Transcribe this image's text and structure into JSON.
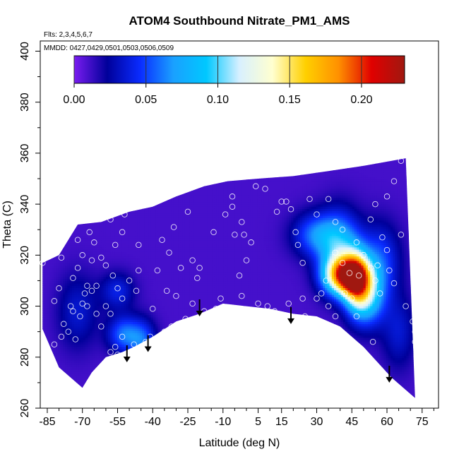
{
  "chart_data": {
    "type": "heatmap",
    "title": "ATOM4 Southbound Nitrate_PM1_AMS",
    "flights_note": "Flts: 2,3,4,5,6,7",
    "dates_note": "MMDD: 0427,0429,0501,0503,0506,0509",
    "xlabel": "Latitude (deg N)",
    "ylabel": "Theta (C)",
    "xlim": [
      -88,
      82
    ],
    "ylim": [
      260,
      404
    ],
    "xticks": [
      -85,
      -70,
      -55,
      -40,
      -25,
      -10,
      5,
      15,
      30,
      45,
      60,
      75
    ],
    "yticks": [
      260,
      280,
      300,
      320,
      340,
      360,
      380,
      400
    ],
    "colorbar": {
      "range": [
        0,
        0.23
      ],
      "ticks": [
        0.0,
        0.05,
        0.1,
        0.15,
        0.2
      ],
      "tick_labels": [
        "0.00",
        "0.05",
        "0.10",
        "0.15",
        "0.20"
      ],
      "colors": [
        "#7a1cf0",
        "#00009a",
        "#0a2cff",
        "#1aa0ff",
        "#00c8ff",
        "#d8f0ff",
        "#ffffd0",
        "#ffd000",
        "#ff9000",
        "#e00000",
        "#a01810"
      ]
    },
    "domain_top": [
      [
        -87,
        317
      ],
      [
        -80,
        320
      ],
      [
        -72,
        332
      ],
      [
        -62,
        333
      ],
      [
        -50,
        337
      ],
      [
        -40,
        339
      ],
      [
        -30,
        343
      ],
      [
        -18,
        347
      ],
      [
        -8,
        349
      ],
      [
        5,
        350
      ],
      [
        20,
        351
      ],
      [
        35,
        353
      ],
      [
        50,
        355
      ],
      [
        62,
        357
      ],
      [
        68,
        358
      ]
    ],
    "domain_bottom": [
      [
        72,
        264
      ],
      [
        62,
        272
      ],
      [
        50,
        284
      ],
      [
        40,
        292
      ],
      [
        30,
        296
      ],
      [
        20,
        297
      ],
      [
        10,
        299
      ],
      [
        0,
        300
      ],
      [
        -10,
        301
      ],
      [
        -20,
        297
      ],
      [
        -30,
        294
      ],
      [
        -40,
        288
      ],
      [
        -48,
        284
      ],
      [
        -53,
        282
      ],
      [
        -60,
        280
      ],
      [
        -66,
        274
      ],
      [
        -70,
        268
      ],
      [
        -80,
        276
      ],
      [
        -87,
        291
      ]
    ],
    "background_value": 0.01,
    "features": [
      {
        "lat": 42,
        "theta": 312,
        "value": 0.16,
        "sx": 6,
        "sy": 5
      },
      {
        "lat": 47,
        "theta": 310,
        "value": 0.12,
        "sx": 4,
        "sy": 8
      },
      {
        "lat": 40,
        "theta": 322,
        "value": 0.07,
        "sx": 6,
        "sy": 10
      },
      {
        "lat": 52,
        "theta": 304,
        "value": 0.07,
        "sx": 5,
        "sy": 8
      },
      {
        "lat": 30,
        "theta": 328,
        "value": 0.05,
        "sx": 7,
        "sy": 6
      },
      {
        "lat": 57,
        "theta": 318,
        "value": 0.04,
        "sx": 6,
        "sy": 10
      },
      {
        "lat": -52,
        "theta": 289,
        "value": 0.05,
        "sx": 5,
        "sy": 5
      },
      {
        "lat": -44,
        "theta": 286,
        "value": 0.04,
        "sx": 4,
        "sy": 6
      },
      {
        "lat": -55,
        "theta": 306,
        "value": 0.03,
        "sx": 5,
        "sy": 5
      },
      {
        "lat": -72,
        "theta": 298,
        "value": 0.025,
        "sx": 6,
        "sy": 10
      },
      {
        "lat": 65,
        "theta": 290,
        "value": 0.025,
        "sx": 5,
        "sy": 10
      }
    ],
    "sample_points": [
      [
        -87,
        317
      ],
      [
        -79,
        319
      ],
      [
        -72,
        326
      ],
      [
        -70,
        320
      ],
      [
        -72,
        315
      ],
      [
        -74,
        311
      ],
      [
        -75,
        300
      ],
      [
        -74,
        298
      ],
      [
        -76,
        290
      ],
      [
        -79,
        288
      ],
      [
        -82,
        285
      ],
      [
        -73,
        287
      ],
      [
        -71,
        296
      ],
      [
        -69,
        305
      ],
      [
        -68,
        308
      ],
      [
        -68,
        300
      ],
      [
        -70,
        301
      ],
      [
        -66,
        306
      ],
      [
        -64,
        297
      ],
      [
        -66,
        318
      ],
      [
        -67,
        329
      ],
      [
        -65,
        325
      ],
      [
        -62,
        319
      ],
      [
        -60,
        316
      ],
      [
        -57,
        312
      ],
      [
        -55,
        307
      ],
      [
        -53,
        303
      ],
      [
        -50,
        310
      ],
      [
        -47,
        306
      ],
      [
        -46,
        314
      ],
      [
        -46,
        324
      ],
      [
        -53,
        329
      ],
      [
        -56,
        324
      ],
      [
        -58,
        334
      ],
      [
        -52,
        336
      ],
      [
        -64,
        308
      ],
      [
        -60,
        300
      ],
      [
        -58,
        297
      ],
      [
        -62,
        292
      ],
      [
        -58,
        282
      ],
      [
        -56,
        284
      ],
      [
        -55,
        281
      ],
      [
        -53,
        288
      ],
      [
        -50,
        281
      ],
      [
        -48,
        285
      ],
      [
        -46,
        283
      ],
      [
        -43,
        286
      ],
      [
        -41,
        288
      ],
      [
        -38,
        314
      ],
      [
        -36,
        326
      ],
      [
        -33,
        321
      ],
      [
        -31,
        331
      ],
      [
        -28,
        315
      ],
      [
        -23,
        318
      ],
      [
        -21,
        311
      ],
      [
        -20,
        315
      ],
      [
        -18,
        298
      ],
      [
        -23,
        301
      ],
      [
        -26,
        295
      ],
      [
        -14,
        329
      ],
      [
        -6,
        343
      ],
      [
        -9,
        336
      ],
      [
        -6,
        339
      ],
      [
        -5,
        328
      ],
      [
        -2,
        333
      ],
      [
        -1,
        328
      ],
      [
        2,
        325
      ],
      [
        0,
        318
      ],
      [
        -3,
        312
      ],
      [
        4,
        347
      ],
      [
        8,
        346
      ],
      [
        13,
        337
      ],
      [
        15,
        341
      ],
      [
        17,
        341
      ],
      [
        19,
        338
      ],
      [
        21,
        329
      ],
      [
        22,
        324
      ],
      [
        24,
        317
      ],
      [
        24,
        303
      ],
      [
        27,
        342
      ],
      [
        30,
        336
      ],
      [
        25,
        296
      ],
      [
        28,
        291
      ],
      [
        31,
        287
      ],
      [
        32,
        305
      ],
      [
        34,
        310
      ],
      [
        38,
        321
      ],
      [
        41,
        317
      ],
      [
        44,
        313
      ],
      [
        42,
        305
      ],
      [
        45,
        303
      ],
      [
        47,
        296
      ],
      [
        48,
        312
      ],
      [
        50,
        320
      ],
      [
        53,
        315
      ],
      [
        55,
        310
      ],
      [
        56,
        316
      ],
      [
        58,
        327
      ],
      [
        60,
        322
      ],
      [
        61,
        314
      ],
      [
        63,
        309
      ],
      [
        57,
        305
      ],
      [
        54,
        286
      ],
      [
        50,
        280
      ],
      [
        44,
        284
      ],
      [
        40,
        288
      ],
      [
        38,
        296
      ],
      [
        35,
        300
      ],
      [
        30,
        303
      ],
      [
        18,
        301
      ],
      [
        12,
        298
      ],
      [
        9,
        300
      ],
      [
        5,
        301
      ],
      [
        -2,
        304
      ],
      [
        -11,
        303
      ],
      [
        -13,
        299
      ],
      [
        -30,
        304
      ],
      [
        -34,
        306
      ],
      [
        -40,
        299
      ],
      [
        -35,
        290
      ],
      [
        -32,
        292
      ],
      [
        66,
        328
      ],
      [
        68,
        300
      ],
      [
        71,
        294
      ],
      [
        72,
        290
      ],
      [
        72,
        286
      ],
      [
        -80,
        307
      ],
      [
        -82,
        302
      ],
      [
        -78,
        293
      ],
      [
        47,
        325
      ],
      [
        53,
        334
      ],
      [
        55,
        340
      ],
      [
        60,
        343
      ],
      [
        63,
        349
      ],
      [
        66,
        357
      ],
      [
        35,
        342
      ],
      [
        38,
        333
      ],
      [
        41,
        330
      ],
      [
        -60,
        350
      ],
      [
        -73,
        345
      ],
      [
        -45,
        345
      ],
      [
        -25,
        337
      ],
      [
        -15,
        349
      ],
      [
        10,
        355
      ]
    ],
    "arrows": [
      {
        "lat": -51,
        "theta": 278
      },
      {
        "lat": -42,
        "theta": 282
      },
      {
        "lat": -20,
        "theta": 296
      },
      {
        "lat": 19,
        "theta": 293
      },
      {
        "lat": 61,
        "theta": 270
      }
    ]
  }
}
